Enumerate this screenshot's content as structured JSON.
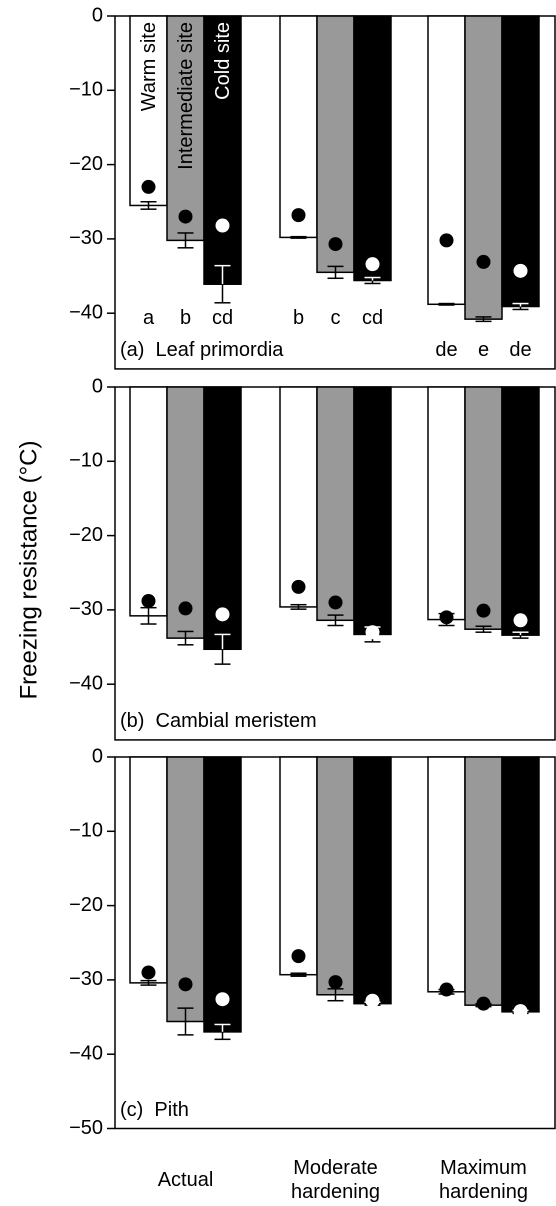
{
  "chart_data": [
    {
      "type": "bar",
      "title": "(a)  Leaf primordia",
      "y_label": "Freezing resistance (°C)",
      "ylim": [
        -47.5,
        0
      ],
      "yticks": [
        0,
        {
          "value": -10,
          "label": "−10"
        },
        {
          "value": -20,
          "label": "−20"
        },
        {
          "value": -30,
          "label": "−30"
        },
        {
          "value": -40,
          "label": "−40"
        }
      ],
      "series": [
        {
          "name": "Warm site",
          "color": "#ffffff",
          "ink": "#000000",
          "values": [
            -25.5,
            -29.8,
            -38.8
          ],
          "errors": [
            0.5,
            0.1,
            0.1
          ],
          "dots": [
            -23,
            -26.8,
            -30.2
          ],
          "letters": [
            "a",
            "b",
            "de"
          ]
        },
        {
          "name": "Intermediate site",
          "color": "#999999",
          "ink": "#000000",
          "values": [
            -30.2,
            -34.5,
            -40.8
          ],
          "errors": [
            1,
            0.8,
            0.3
          ],
          "dots": [
            -27,
            -30.7,
            -33.1
          ],
          "letters": [
            "b",
            "c",
            "e"
          ]
        },
        {
          "name": "Cold site",
          "color": "#000000",
          "ink": "#ffffff",
          "values": [
            -36.1,
            -35.6,
            -39.1
          ],
          "errors": [
            2.5,
            0.4,
            0.4
          ],
          "dots": [
            -28.2,
            -33.4,
            -34.3
          ],
          "letters": [
            "cd",
            "cd",
            "de"
          ]
        }
      ]
    },
    {
      "type": "bar",
      "title": "(b)  Cambial meristem",
      "ylim": [
        -47.5,
        0
      ],
      "yticks": [
        0,
        {
          "value": -10,
          "label": "−10"
        },
        {
          "value": -20,
          "label": "−20"
        },
        {
          "value": -30,
          "label": "−30"
        },
        {
          "value": -40,
          "label": "−40"
        }
      ],
      "series": [
        {
          "color": "#ffffff",
          "ink": "#000000",
          "values": [
            -30.8,
            -29.6,
            -31.3
          ],
          "errors": [
            1.1,
            0.3,
            0.8
          ],
          "dots": [
            -28.8,
            -26.9,
            -31
          ]
        },
        {
          "color": "#999999",
          "ink": "#000000",
          "values": [
            -33.8,
            -31.4,
            -32.6
          ],
          "errors": [
            0.9,
            0.7,
            0.4
          ],
          "dots": [
            -29.8,
            -29,
            -30.1
          ]
        },
        {
          "color": "#000000",
          "ink": "#ffffff",
          "values": [
            -35.3,
            -33.3,
            -33.4
          ],
          "errors": [
            2,
            1,
            0.4
          ],
          "dots": [
            -30.6,
            -33,
            -31.4
          ]
        }
      ]
    },
    {
      "type": "bar",
      "title": "(c)  Pith",
      "categories": [
        "Actual",
        "Moderate hardening",
        "Maximum hardening"
      ],
      "ylim": [
        -50,
        0
      ],
      "yticks": [
        0,
        {
          "value": -10,
          "label": "−10"
        },
        {
          "value": -20,
          "label": "−20"
        },
        {
          "value": -30,
          "label": "−30"
        },
        {
          "value": -40,
          "label": "−40"
        },
        {
          "value": -50,
          "label": "−50"
        }
      ],
      "series": [
        {
          "color": "#ffffff",
          "ink": "#000000",
          "values": [
            -30.4,
            -29.3,
            -31.6
          ],
          "errors": [
            0.3,
            0.2,
            0.3
          ],
          "dots": [
            -29,
            -26.8,
            -31.3
          ]
        },
        {
          "color": "#999999",
          "ink": "#000000",
          "values": [
            -35.6,
            -32,
            -33.4
          ],
          "errors": [
            1.8,
            0.8,
            0.2
          ],
          "dots": [
            -30.6,
            -30.3,
            -33.2
          ]
        },
        {
          "color": "#000000",
          "ink": "#ffffff",
          "values": [
            -37,
            -33.2,
            -34.3
          ],
          "errors": [
            1,
            0.2,
            0.2
          ],
          "dots": [
            -32.6,
            -32.8,
            -34.2
          ]
        }
      ]
    }
  ]
}
